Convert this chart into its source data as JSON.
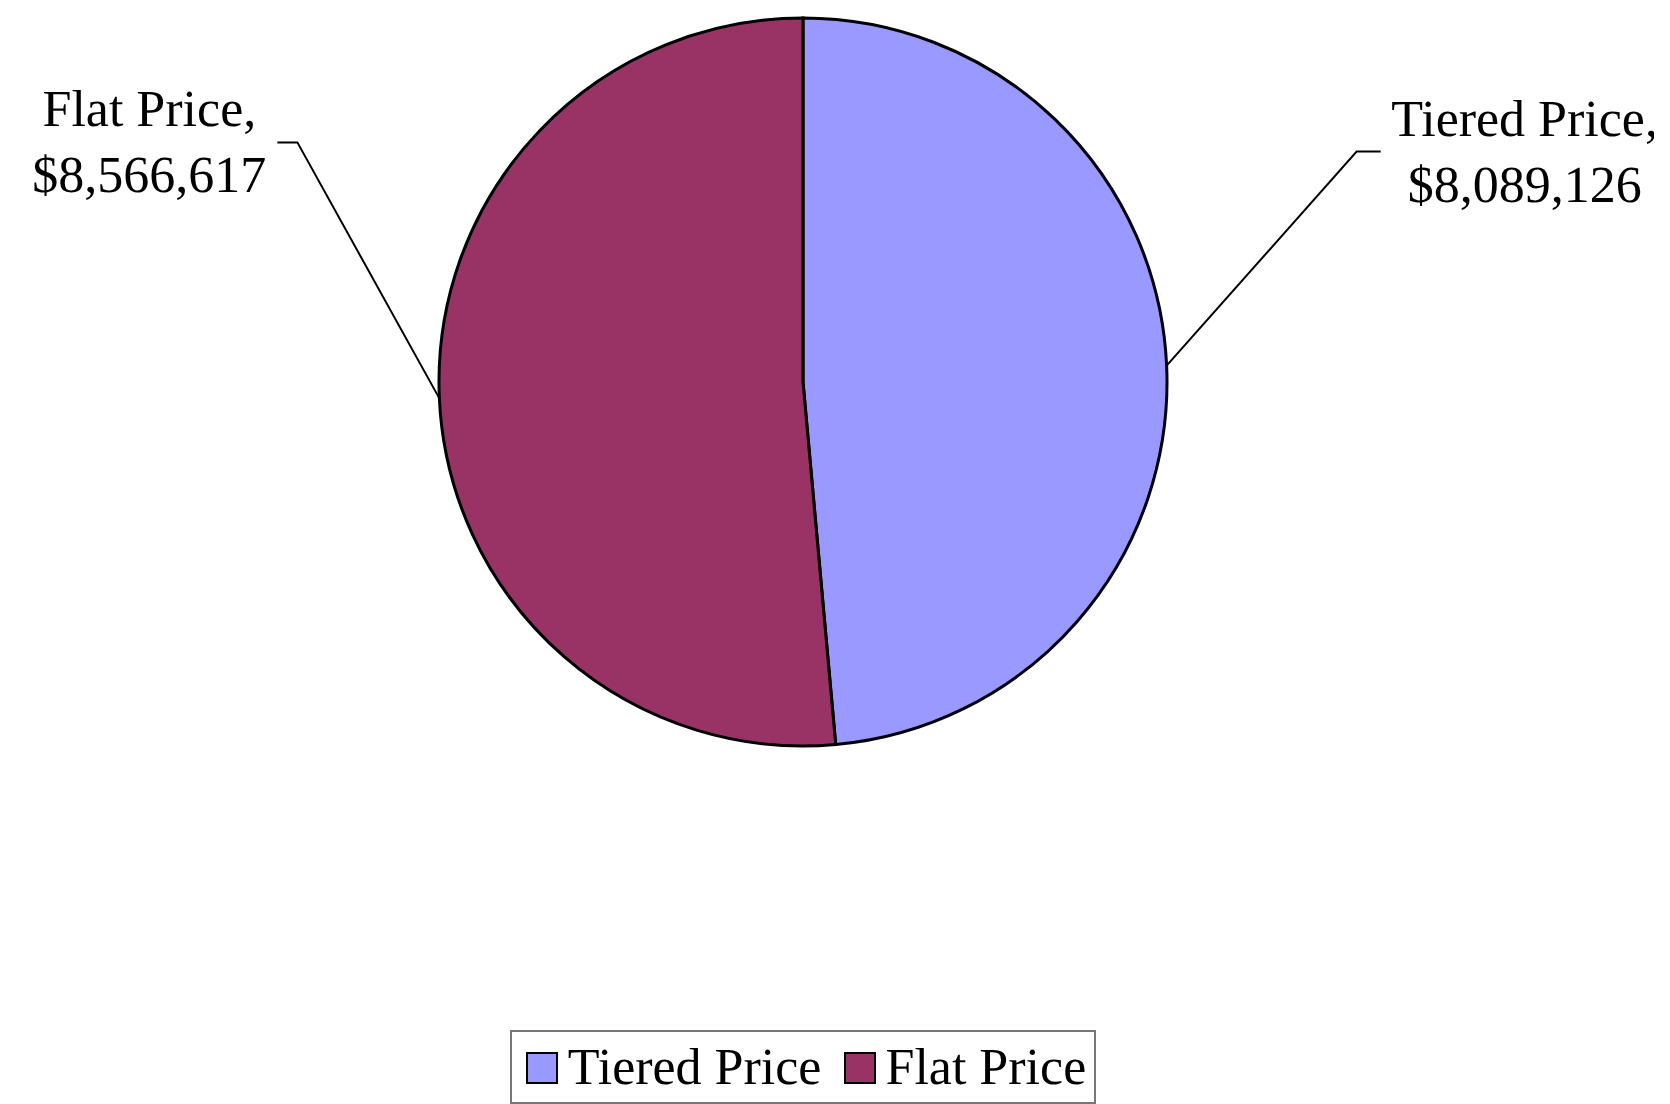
{
  "chart_data": {
    "type": "pie",
    "categories": [
      "Tiered Price",
      "Flat Price"
    ],
    "values": [
      8089126,
      8566617
    ],
    "colors": [
      "#9999ff",
      "#993366"
    ],
    "value_labels": [
      "Tiered Price,\n$8,089,126",
      "Flat Price,\n$8,566,617"
    ],
    "legend": "bottom"
  }
}
